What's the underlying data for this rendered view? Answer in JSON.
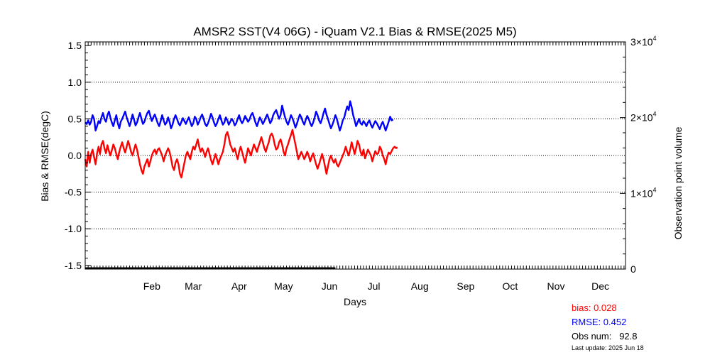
{
  "chart_data": {
    "type": "line",
    "title": "AMSR2 SST(V4 06G) - iQuam V2.1 Bias & RMSE(2025 M5)",
    "xlabel": "Days",
    "ylabel": "Bias & RMSE(degC)",
    "y2label": "Observation point volume",
    "ylim": [
      -1.55,
      1.55
    ],
    "y2lim": [
      0,
      30000
    ],
    "xlim": [
      1,
      366
    ],
    "yticks": [
      "1.5",
      "1.0",
      "0.5",
      "0.0",
      "-0.5",
      "-1.0",
      "-1.5"
    ],
    "ytick_values": [
      1.5,
      1.0,
      0.5,
      0.0,
      -0.5,
      -1.0,
      -1.5
    ],
    "y2ticks": [
      {
        "value": 30000,
        "base": "3×10",
        "exp": "4"
      },
      {
        "value": 20000,
        "base": "2×10",
        "exp": "4"
      },
      {
        "value": 10000,
        "base": "1×10",
        "exp": "4"
      },
      {
        "value": 0,
        "base": "0",
        "exp": ""
      }
    ],
    "gridlines_y": [
      1.0,
      0.5,
      0.0,
      -0.5,
      -1.0
    ],
    "grid_style": "dotted",
    "month_labels": [
      {
        "label": "Feb",
        "day": 46
      },
      {
        "label": "Mar",
        "day": 74
      },
      {
        "label": "Apr",
        "day": 105
      },
      {
        "label": "May",
        "day": 135
      },
      {
        "label": "Jun",
        "day": 166
      },
      {
        "label": "Jul",
        "day": 196
      },
      {
        "label": "Aug",
        "day": 227
      },
      {
        "label": "Sep",
        "day": 258
      },
      {
        "label": "Oct",
        "day": 288
      },
      {
        "label": "Nov",
        "day": 319
      },
      {
        "label": "Dec",
        "day": 349
      }
    ],
    "series": [
      {
        "name": "RMSE",
        "color": "#0000ff",
        "x_start": 1,
        "values": [
          0.45,
          0.43,
          0.48,
          0.42,
          0.46,
          0.55,
          0.5,
          0.34,
          0.4,
          0.47,
          0.44,
          0.52,
          0.58,
          0.5,
          0.46,
          0.55,
          0.6,
          0.52,
          0.45,
          0.4,
          0.48,
          0.55,
          0.44,
          0.37,
          0.46,
          0.5,
          0.55,
          0.6,
          0.52,
          0.46,
          0.4,
          0.47,
          0.56,
          0.49,
          0.41,
          0.45,
          0.52,
          0.58,
          0.5,
          0.43,
          0.46,
          0.53,
          0.58,
          0.61,
          0.54,
          0.47,
          0.52,
          0.56,
          0.5,
          0.44,
          0.4,
          0.47,
          0.55,
          0.48,
          0.42,
          0.45,
          0.52,
          0.46,
          0.37,
          0.42,
          0.5,
          0.55,
          0.5,
          0.44,
          0.41,
          0.46,
          0.51,
          0.47,
          0.43,
          0.48,
          0.52,
          0.46,
          0.4,
          0.44,
          0.53,
          0.5,
          0.42,
          0.46,
          0.52,
          0.56,
          0.5,
          0.43,
          0.4,
          0.44,
          0.5,
          0.57,
          0.52,
          0.45,
          0.4,
          0.44,
          0.5,
          0.55,
          0.48,
          0.42,
          0.45,
          0.52,
          0.48,
          0.42,
          0.46,
          0.5,
          0.47,
          0.41,
          0.44,
          0.5,
          0.55,
          0.48,
          0.44,
          0.48,
          0.54,
          0.5,
          0.46,
          0.49,
          0.55,
          0.58,
          0.52,
          0.45,
          0.4,
          0.46,
          0.52,
          0.48,
          0.43,
          0.47,
          0.52,
          0.56,
          0.5,
          0.44,
          0.48,
          0.55,
          0.59,
          0.62,
          0.56,
          0.5,
          0.55,
          0.68,
          0.6,
          0.52,
          0.46,
          0.42,
          0.48,
          0.55,
          0.51,
          0.45,
          0.38,
          0.43,
          0.5,
          0.56,
          0.52,
          0.46,
          0.42,
          0.49,
          0.54,
          0.5,
          0.44,
          0.4,
          0.45,
          0.52,
          0.6,
          0.55,
          0.48,
          0.44,
          0.5,
          0.58,
          0.64,
          0.56,
          0.5,
          0.43,
          0.37,
          0.42,
          0.48,
          0.55,
          0.5,
          0.42,
          0.34,
          0.4,
          0.48,
          0.52,
          0.6,
          0.67,
          0.62,
          0.74,
          0.66,
          0.55,
          0.48,
          0.4,
          0.45,
          0.5,
          0.44,
          0.42,
          0.47,
          0.44,
          0.4,
          0.45,
          0.48,
          0.42,
          0.38,
          0.43,
          0.47,
          0.44,
          0.4,
          0.36,
          0.42,
          0.46,
          0.4,
          0.34,
          0.4,
          0.46,
          0.53,
          0.48,
          0.49
        ]
      },
      {
        "name": "bias",
        "color": "#ff0000",
        "x_start": 1,
        "values": [
          -0.05,
          -0.15,
          0.05,
          -0.1,
          0.02,
          0.08,
          -0.02,
          -0.12,
          0.03,
          0.12,
          0.02,
          0.15,
          0.2,
          0.1,
          0.03,
          0.14,
          0.06,
          0.0,
          0.07,
          0.15,
          0.1,
          0.02,
          -0.05,
          0.05,
          0.12,
          0.18,
          0.1,
          0.04,
          0.12,
          0.2,
          0.13,
          0.05,
          0.0,
          0.08,
          0.15,
          0.08,
          -0.02,
          -0.12,
          -0.2,
          -0.25,
          -0.15,
          -0.1,
          -0.05,
          -0.15,
          -0.08,
          0.0,
          0.05,
          0.08,
          0.02,
          0.08,
          0.1,
          0.05,
          0.0,
          -0.08,
          0.0,
          0.05,
          0.1,
          0.05,
          -0.04,
          -0.15,
          -0.2,
          -0.1,
          -0.05,
          -0.12,
          -0.25,
          -0.3,
          -0.2,
          -0.1,
          0.0,
          0.05,
          0.0,
          -0.05,
          0.05,
          0.12,
          0.08,
          0.15,
          0.22,
          0.12,
          0.05,
          0.1,
          0.05,
          -0.02,
          0.05,
          0.1,
          0.02,
          -0.06,
          -0.12,
          -0.05,
          0.02,
          -0.05,
          -0.12,
          -0.05,
          0.0,
          0.05,
          0.15,
          0.28,
          0.32,
          0.25,
          0.15,
          0.1,
          0.05,
          0.1,
          0.02,
          -0.05,
          0.05,
          0.12,
          0.05,
          -0.03,
          -0.1,
          0.0,
          0.1,
          0.05,
          0.0,
          0.08,
          0.15,
          0.1,
          0.05,
          0.12,
          0.18,
          0.25,
          0.18,
          0.1,
          0.05,
          0.12,
          0.18,
          0.27,
          0.3,
          0.25,
          0.15,
          0.08,
          0.1,
          0.18,
          0.22,
          0.15,
          0.05,
          0.0,
          0.1,
          0.15,
          0.22,
          0.28,
          0.35,
          0.25,
          0.15,
          0.05,
          -0.05,
          0.0,
          0.05,
          0.0,
          -0.05,
          0.0,
          0.05,
          0.0,
          -0.08,
          -0.02,
          0.03,
          -0.05,
          -0.12,
          -0.18,
          -0.12,
          -0.05,
          0.02,
          -0.05,
          -0.15,
          -0.25,
          -0.15,
          -0.05,
          0.0,
          -0.06,
          -0.1,
          -0.05,
          -0.12,
          -0.15,
          -0.1,
          -0.05,
          0.0,
          0.05,
          0.12,
          0.05,
          0.0,
          0.08,
          0.18,
          0.1,
          0.02,
          0.1,
          0.2,
          0.15,
          0.05,
          0.0,
          0.08,
          -0.04,
          0.02,
          0.08,
          0.04,
          0.0,
          -0.08,
          0.0,
          0.06,
          0.02,
          0.03,
          0.12,
          0.08,
          0.0,
          -0.05,
          -0.12,
          -0.02,
          0.04,
          0.02,
          0.06,
          0.1,
          0.12,
          0.1,
          0.11
        ]
      },
      {
        "name": "Obs num",
        "color": "#000000",
        "axis": "right",
        "x_start": 1,
        "x_end": 170,
        "value": 92.8
      }
    ]
  },
  "stats": {
    "bias_label": "bias: 0.028",
    "rmse_label": "RMSE: 0.452",
    "obs_label": "Obs num:   92.8",
    "updated_label": "Last update: 2025 Jun 18"
  }
}
